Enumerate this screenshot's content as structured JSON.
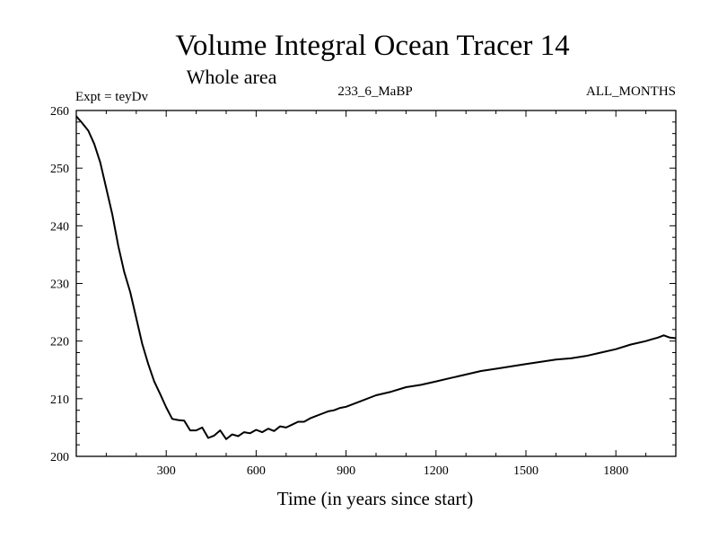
{
  "chart_data": {
    "type": "line",
    "title": "Volume Integral Ocean Tracer 14",
    "subtitle": "Whole area",
    "experiment_label": "Expt = teyDv",
    "run_label": "233_6_MaBP",
    "season_label": "ALL_MONTHS",
    "xlabel": "Time (in years since start)",
    "ylabel": "",
    "xlim": [
      0,
      2000
    ],
    "ylim": [
      200,
      260
    ],
    "x_ticks": [
      300,
      600,
      900,
      1200,
      1500,
      1800
    ],
    "y_ticks": [
      200,
      210,
      220,
      230,
      240,
      250,
      260
    ],
    "grid": false,
    "series": [
      {
        "name": "Ocean Tracer 14",
        "color": "#000000",
        "x": [
          0,
          20,
          40,
          60,
          80,
          100,
          120,
          140,
          160,
          180,
          200,
          220,
          240,
          260,
          280,
          300,
          320,
          340,
          360,
          380,
          400,
          420,
          440,
          460,
          480,
          500,
          520,
          540,
          560,
          580,
          600,
          620,
          640,
          660,
          680,
          700,
          720,
          740,
          760,
          780,
          800,
          820,
          840,
          860,
          880,
          900,
          950,
          1000,
          1050,
          1100,
          1150,
          1200,
          1250,
          1300,
          1350,
          1400,
          1450,
          1500,
          1550,
          1600,
          1650,
          1700,
          1750,
          1800,
          1850,
          1900,
          1920,
          1940,
          1960,
          1980,
          2000
        ],
        "values": [
          259.0,
          257.8,
          256.5,
          254.2,
          251.0,
          246.5,
          242.0,
          236.5,
          232.0,
          228.5,
          224.0,
          219.5,
          216.0,
          213.0,
          210.8,
          208.5,
          206.5,
          206.3,
          206.2,
          204.5,
          204.5,
          205.0,
          203.2,
          203.6,
          204.5,
          203.0,
          203.8,
          203.5,
          204.2,
          204.0,
          204.6,
          204.2,
          204.8,
          204.4,
          205.2,
          205.0,
          205.5,
          206.0,
          206.0,
          206.6,
          207.0,
          207.4,
          207.8,
          208.0,
          208.4,
          208.6,
          209.6,
          210.6,
          211.2,
          212.0,
          212.4,
          213.0,
          213.6,
          214.2,
          214.8,
          215.2,
          215.6,
          216.0,
          216.4,
          216.8,
          217.0,
          217.4,
          218.0,
          218.6,
          219.4,
          220.0,
          220.3,
          220.6,
          221.0,
          220.6,
          220.5
        ]
      }
    ]
  }
}
